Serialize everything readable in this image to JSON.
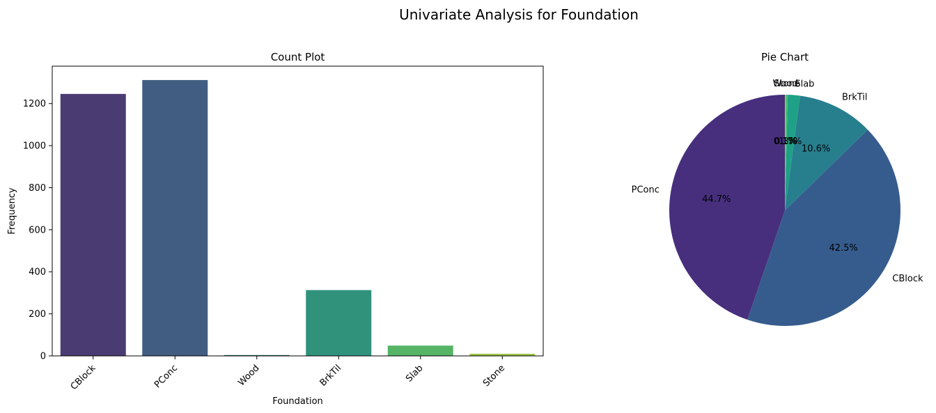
{
  "figure": {
    "suptitle": "Univariate Analysis for Foundation"
  },
  "chart_data": [
    {
      "type": "bar",
      "title": "Count Plot",
      "xlabel": "Foundation",
      "ylabel": "Frequency",
      "categories": [
        "CBlock",
        "PConc",
        "Wood",
        "BrkTil",
        "Slab",
        "Stone"
      ],
      "values": [
        1246,
        1312,
        4,
        313,
        49,
        10
      ],
      "colors": [
        "#4b3b73",
        "#415d82",
        "#2f6f6f",
        "#31927c",
        "#56b466",
        "#9bc544"
      ],
      "ylim": [
        0,
        1378
      ],
      "yticks": [
        0,
        200,
        400,
        600,
        800,
        1000,
        1200
      ],
      "xtick_rotation": 45,
      "grid": false,
      "legend": "none"
    },
    {
      "type": "pie",
      "title": "Pie Chart",
      "labels": [
        "PConc",
        "CBlock",
        "BrkTil",
        "Slab",
        "Stone",
        "Wood"
      ],
      "percent_labels": [
        "44.7%",
        "42.5%",
        "10.6%",
        "1.7%",
        "0.3%",
        "0.1%"
      ],
      "values": [
        44.7,
        42.5,
        10.6,
        1.7,
        0.3,
        0.1
      ],
      "colors": [
        "#472f7d",
        "#365c8d",
        "#277f8e",
        "#1fa187",
        "#4ac16d",
        "#a0da39"
      ],
      "startangle": 90,
      "direction": "counterclockwise",
      "legend": "none"
    }
  ]
}
